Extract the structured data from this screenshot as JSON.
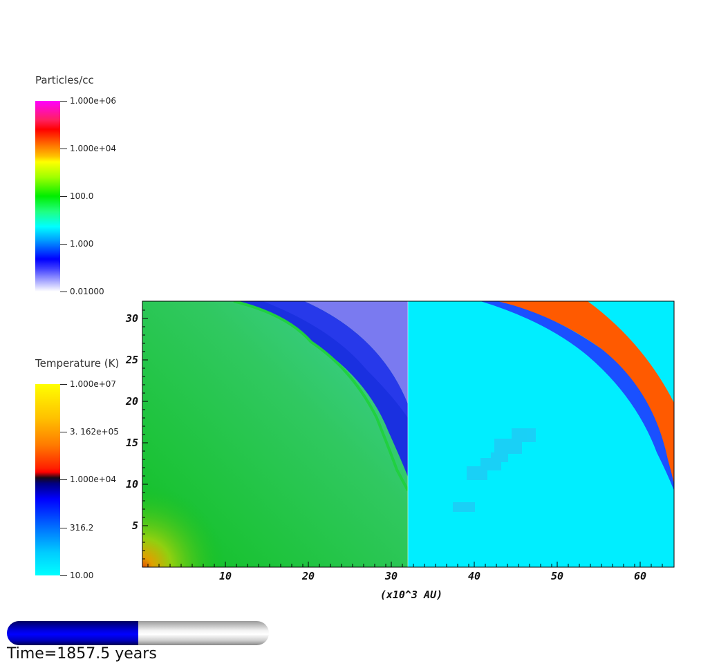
{
  "colorbars": [
    {
      "title": "Particles/cc",
      "ticks": [
        "1.000e+06",
        "1.000e+04",
        "100.0",
        "1.000",
        "0.01000"
      ]
    },
    {
      "title": "Temperature (K)",
      "ticks": [
        "1.000e+07",
        "3. 162e+05",
        "1.000e+04",
        "316.2",
        "10.00"
      ]
    }
  ],
  "chart_data": {
    "type": "heatmap",
    "xlabel": "(x10^3 AU)",
    "x_ticks": [
      "10",
      "20",
      "30",
      "40",
      "50",
      "60"
    ],
    "y_ticks": [
      "5",
      "10",
      "15",
      "20",
      "25",
      "30"
    ],
    "xlim": [
      0,
      64
    ],
    "ylim": [
      0,
      32
    ],
    "left_panel": "density (Particles/cc), x 0–32",
    "right_panel": "temperature (K), x 32–64",
    "shock_front": [
      [
        32,
        10
      ],
      [
        30,
        16
      ],
      [
        25,
        26
      ],
      [
        19,
        30.5
      ],
      [
        15,
        32
      ]
    ],
    "colors": {
      "density_bg": "#10c020",
      "shell_dark": "#1020d0",
      "outer": "#7a7af0",
      "temp_bg": "#00eeff",
      "temp_hot": "#ff5a00",
      "temp_mid": "#1a50ff"
    }
  },
  "progress": {
    "value": 0.5,
    "label": "Time=1857.5 years"
  }
}
